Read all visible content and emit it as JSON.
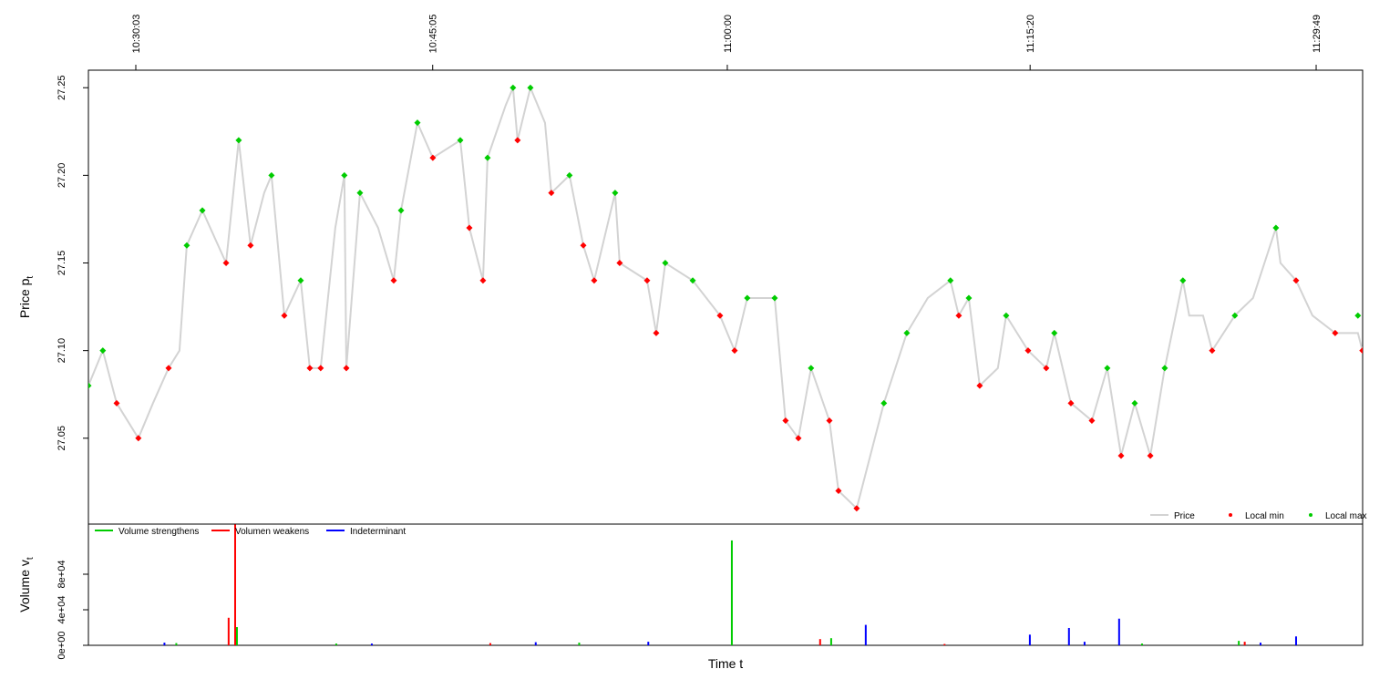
{
  "chart_data": [
    {
      "type": "line",
      "ylabel": "Price p",
      "ylabel_sub": "t",
      "xlim": [
        -2.35,
        62.17
      ],
      "xticks": [
        {
          "value": 0.05,
          "label": "10:30:03"
        },
        {
          "value": 15.083,
          "label": "10:45:05"
        },
        {
          "value": 30,
          "label": "11:00:00"
        },
        {
          "value": 45.333,
          "label": "11:15:20"
        },
        {
          "value": 59.817,
          "label": "11:29:49"
        }
      ],
      "ylim": [
        27.001,
        27.26
      ],
      "yticks": [
        27.05,
        {
          "value": 27.1,
          "label": "27.10"
        },
        27.15,
        {
          "value": 27.2,
          "label": "27.20"
        },
        27.25
      ],
      "legend": "bottom-right",
      "series": [
        {
          "name": "Price",
          "style": "line",
          "color": "#d3d3d3",
          "x": [
            -2.35,
            -1.62,
            -0.92,
            0.18,
            0.92,
            1.71,
            2.26,
            2.63,
            3.42,
            4.62,
            5.26,
            5.86,
            6.55,
            6.92,
            7.57,
            8.4,
            8.86,
            9.41,
            10.15,
            10.61,
            10.71,
            11.4,
            12.32,
            13.11,
            13.48,
            14.31,
            15.09,
            16.48,
            16.94,
            17.63,
            17.86,
            18.78,
            19.15,
            19.38,
            20.03,
            20.77,
            21.09,
            22.01,
            22.71,
            23.26,
            24.32,
            24.55,
            25.94,
            26.4,
            26.86,
            28.25,
            29.63,
            30.37,
            31.01,
            32.4,
            32.95,
            33.6,
            34.24,
            35.17,
            35.63,
            36.55,
            37.24,
            37.93,
            39.09,
            40.15,
            41.3,
            41.72,
            42.23,
            42.78,
            43.7,
            44.12,
            45.23,
            46.15,
            46.56,
            47.4,
            48.46,
            49.24,
            49.94,
            50.63,
            51.42,
            52.15,
            53.07,
            53.39,
            54.09,
            54.55,
            55.7,
            56.62,
            57.78,
            58.01,
            58.8,
            59.63,
            60.78,
            61.93,
            62.16
          ],
          "values": [
            27.08,
            27.1,
            27.07,
            27.05,
            27.07,
            27.09,
            27.1,
            27.16,
            27.18,
            27.15,
            27.22,
            27.16,
            27.19,
            27.2,
            27.12,
            27.14,
            27.09,
            27.09,
            27.17,
            27.2,
            27.09,
            27.19,
            27.17,
            27.14,
            27.18,
            27.23,
            27.21,
            27.22,
            27.17,
            27.14,
            27.21,
            27.24,
            27.25,
            27.22,
            27.25,
            27.23,
            27.19,
            27.2,
            27.16,
            27.14,
            27.19,
            27.15,
            27.14,
            27.11,
            27.15,
            27.14,
            27.12,
            27.1,
            27.13,
            27.13,
            27.06,
            27.05,
            27.09,
            27.06,
            27.02,
            27.01,
            27.04,
            27.07,
            27.11,
            27.13,
            27.14,
            27.12,
            27.13,
            27.08,
            27.09,
            27.12,
            27.1,
            27.09,
            27.11,
            27.07,
            27.06,
            27.09,
            27.04,
            27.07,
            27.04,
            27.09,
            27.14,
            27.12,
            27.12,
            27.1,
            27.12,
            27.13,
            27.17,
            27.15,
            27.14,
            27.12,
            27.11,
            27.11,
            27.1
          ]
        },
        {
          "name": "Local min",
          "style": "points",
          "color": "#ff0000",
          "x": [
            -0.92,
            0.18,
            1.71,
            4.62,
            5.86,
            7.57,
            8.86,
            9.41,
            10.71,
            13.11,
            15.09,
            16.94,
            17.63,
            19.38,
            21.09,
            22.71,
            23.26,
            24.55,
            25.94,
            26.4,
            29.63,
            30.37,
            32.95,
            33.6,
            35.17,
            35.63,
            36.55,
            41.72,
            42.78,
            45.23,
            46.15,
            47.4,
            48.46,
            49.94,
            51.42,
            54.55,
            58.8,
            60.78,
            62.16
          ],
          "values": [
            27.07,
            27.05,
            27.09,
            27.15,
            27.16,
            27.12,
            27.09,
            27.09,
            27.09,
            27.14,
            27.21,
            27.17,
            27.14,
            27.22,
            27.19,
            27.16,
            27.14,
            27.15,
            27.14,
            27.11,
            27.12,
            27.1,
            27.06,
            27.05,
            27.06,
            27.02,
            27.01,
            27.12,
            27.08,
            27.1,
            27.09,
            27.07,
            27.06,
            27.04,
            27.04,
            27.1,
            27.14,
            27.11,
            27.1
          ]
        },
        {
          "name": "Local max",
          "style": "points",
          "color": "#00cc00",
          "x": [
            -2.35,
            -1.62,
            2.63,
            3.42,
            5.26,
            6.92,
            8.4,
            10.61,
            11.4,
            13.48,
            14.31,
            16.48,
            17.86,
            19.15,
            20.03,
            22.01,
            24.32,
            26.86,
            28.25,
            31.01,
            32.4,
            34.24,
            37.93,
            39.09,
            41.3,
            42.23,
            44.12,
            46.56,
            49.24,
            50.63,
            52.15,
            53.07,
            55.7,
            57.78,
            61.93
          ],
          "values": [
            27.08,
            27.1,
            27.16,
            27.18,
            27.22,
            27.2,
            27.14,
            27.2,
            27.19,
            27.18,
            27.23,
            27.22,
            27.21,
            27.25,
            27.25,
            27.2,
            27.19,
            27.15,
            27.14,
            27.13,
            27.13,
            27.09,
            27.07,
            27.11,
            27.14,
            27.13,
            27.12,
            27.11,
            27.09,
            27.07,
            27.09,
            27.14,
            27.12,
            27.17,
            27.12
          ]
        }
      ]
    },
    {
      "type": "bar",
      "ylabel": "Volume v",
      "ylabel_sub": "t",
      "xlabel": "Time t",
      "xlim": [
        -2.35,
        62.17
      ],
      "ylim": [
        0,
        136400
      ],
      "yticks": [
        {
          "value": 0,
          "label": "0e+00"
        },
        {
          "value": 40000,
          "label": "4e+04"
        },
        {
          "value": 80000,
          "label": "8e+04"
        }
      ],
      "legend": "top-left",
      "series": [
        {
          "name": "Volume strengthens",
          "color": "#00cc00",
          "x": [
            2.1,
            5.17,
            10.2,
            22.5,
            30.23,
            35.26,
            51.0,
            55.9
          ],
          "values": [
            2500,
            20500,
            2000,
            3000,
            118000,
            8000,
            2000,
            5000
          ]
        },
        {
          "name": "Volumen weakens",
          "color": "#ff0000",
          "x": [
            4.75,
            5.08,
            18.0,
            34.7,
            41.0,
            56.2
          ],
          "values": [
            31000,
            136000,
            2500,
            7000,
            1500,
            4000
          ]
        },
        {
          "name": "Indeterminant",
          "color": "#0000ff",
          "x": [
            1.5,
            12.0,
            20.3,
            26.0,
            37.01,
            45.32,
            47.3,
            48.09,
            49.84,
            57.0,
            58.8
          ],
          "values": [
            3000,
            2000,
            3500,
            4000,
            23000,
            12000,
            19500,
            4000,
            30000,
            3000,
            10000
          ]
        }
      ]
    }
  ]
}
